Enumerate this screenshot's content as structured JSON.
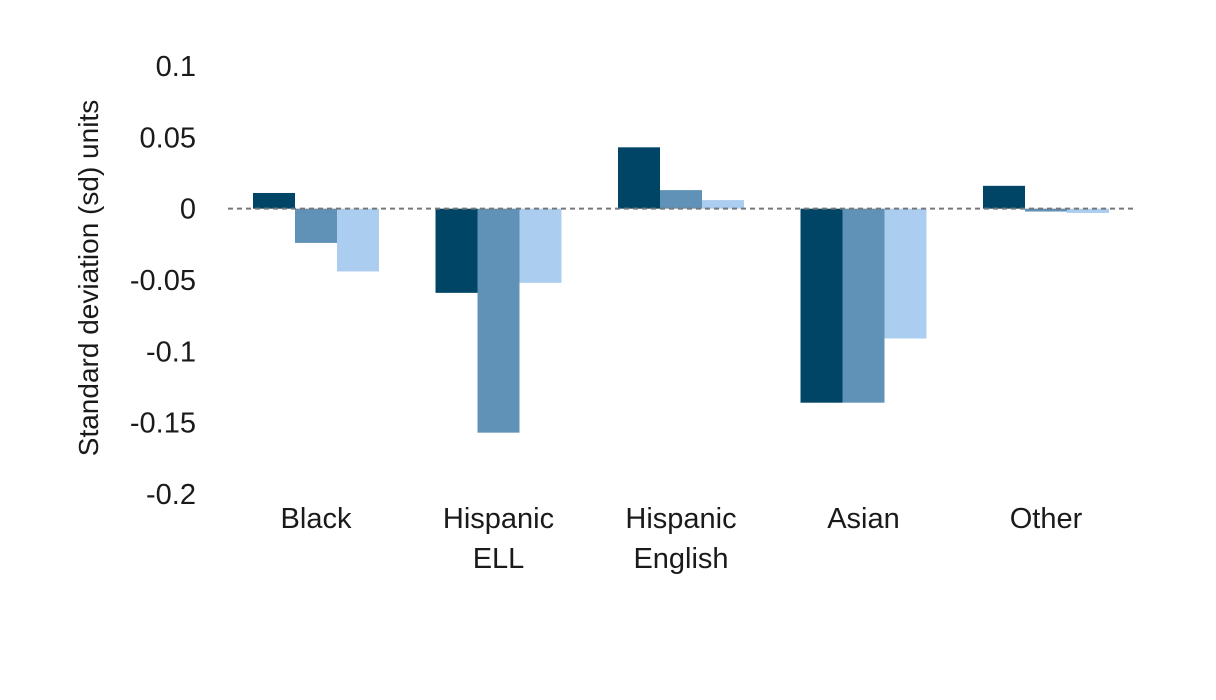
{
  "chart_data": {
    "type": "bar",
    "title": "",
    "xlabel": "",
    "ylabel": "Standard deviation (sd) units",
    "ylim": [
      -0.2,
      0.1
    ],
    "yticks": [
      0.1,
      0.05,
      0,
      -0.05,
      -0.1,
      -0.15,
      -0.2
    ],
    "ytick_labels": [
      "0.1",
      "0.05",
      "0",
      "-0.05",
      "-0.1",
      "-0.15",
      "-0.2"
    ],
    "categories": [
      [
        "Black"
      ],
      [
        "Hispanic",
        "ELL"
      ],
      [
        "Hispanic",
        "English"
      ],
      [
        "Asian"
      ],
      [
        "Other"
      ]
    ],
    "series": [
      {
        "color": "#004466",
        "values": [
          0.011,
          -0.059,
          0.043,
          -0.136,
          0.016
        ]
      },
      {
        "color": "#5f92b6",
        "values": [
          -0.024,
          -0.157,
          0.013,
          -0.136,
          -0.002
        ]
      },
      {
        "color": "#abcdef",
        "values": [
          -0.044,
          -0.052,
          0.006,
          -0.091,
          -0.003
        ]
      }
    ],
    "grid": false,
    "legend": "none",
    "zero_line": "dashed"
  }
}
